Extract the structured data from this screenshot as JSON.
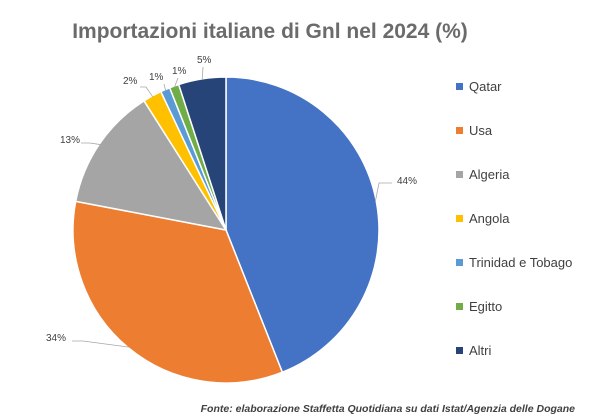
{
  "chart_data": {
    "type": "pie",
    "title": "Importazioni italiane di Gnl nel 2024 (%)",
    "categories": [
      "Qatar",
      "Usa",
      "Algeria",
      "Angola",
      "Trinidad e Tobago",
      "Egitto",
      "Altri"
    ],
    "values": [
      44,
      34,
      13,
      2,
      1,
      1,
      5
    ],
    "data_labels": [
      "44%",
      "34%",
      "13%",
      "2%",
      "1%",
      "1%",
      "5%"
    ],
    "colors": [
      "#4472C4",
      "#ED7D31",
      "#A5A5A5",
      "#FFC000",
      "#5B9BD5",
      "#70AD47",
      "#264478"
    ],
    "legend_position": "right",
    "start_angle_deg": 0,
    "direction": "clockwise"
  },
  "source_note": "Fonte: elaborazione Staffetta Quotidiana su dati Istat/Agenzia delle Dogane"
}
